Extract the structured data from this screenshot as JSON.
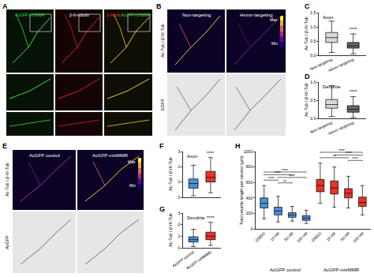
{
  "figure_panels": [
    {
      "label": "A",
      "columns": [
        [
          {
            "text": "AcGFP-mHMMR",
            "color": "#3cdc3c"
          }
        ],
        [
          {
            "text": "β-III-tubulin",
            "color": "#ffffff"
          }
        ],
        [
          {
            "text": "β-III-tub",
            "color": "#ff3030"
          },
          {
            "text": "AcGFP-mHMMR",
            "color": "#3cdc3c"
          }
        ]
      ]
    },
    {
      "label": "B",
      "columns": [
        "Non-targeting",
        "Hmmr-targeting"
      ],
      "rows": [
        "Ac-Tub / β-III-Tub",
        "EGFP"
      ],
      "colorbar": [
        "Max",
        "Min"
      ]
    },
    {
      "label": "E",
      "columns": [
        "AcGFP control",
        "AcGFP-mHMMR"
      ],
      "rows": [
        "Ac-Tub / β-III-Tub",
        "AcGFP"
      ],
      "colorbar": [
        "Max",
        "Min"
      ]
    }
  ],
  "chart_data": [
    {
      "label": "C",
      "type": "box",
      "title": "Axon",
      "y_label": "Ac-Tub / β-III-Tub",
      "categories": [
        "Non-targeting",
        "Hmmr-targeting"
      ],
      "colors": [
        "#d9d9d9",
        "#666666"
      ],
      "boxes": [
        {
          "min": 0.1,
          "q1": 0.45,
          "median": 0.62,
          "q3": 0.8,
          "max": 1.2
        },
        {
          "min": 0.05,
          "q1": 0.25,
          "median": 0.33,
          "q3": 0.45,
          "max": 0.75
        }
      ],
      "significance": "****",
      "ylim": [
        0,
        1.5
      ],
      "yticks": [
        {
          "value": 0,
          "label": "0.0"
        },
        {
          "value": 0.5,
          "label": "0.5"
        },
        {
          "value": 1,
          "label": "1.0"
        },
        {
          "value": 1.5,
          "label": "1.5"
        }
      ],
      "grid": false
    },
    {
      "label": "D",
      "type": "box",
      "title": "Dendrite",
      "y_label": "Ac-Tub / β-III-Tub",
      "categories": [
        "Non-targeting",
        "Hmmr-targeting"
      ],
      "colors": [
        "#d9d9d9",
        "#666666"
      ],
      "boxes": [
        {
          "min": 0.05,
          "q1": 0.28,
          "median": 0.38,
          "q3": 0.52,
          "max": 0.9
        },
        {
          "min": 0.02,
          "q1": 0.17,
          "median": 0.25,
          "q3": 0.35,
          "max": 0.6
        }
      ],
      "significance": "****",
      "ylim": [
        0,
        1
      ],
      "yticks": [
        {
          "value": 0,
          "label": "0.0"
        },
        {
          "value": 0.5,
          "label": "0.5"
        },
        {
          "value": 1,
          "label": "1.0"
        }
      ],
      "grid": false
    },
    {
      "label": "F",
      "type": "box",
      "title": "Axon",
      "y_label": "Ac-Tub / β-III-Tub",
      "categories": [
        "AcGFP control",
        "AcGFP-mHMMR"
      ],
      "colors": [
        "#4a90d9",
        "#e8332a"
      ],
      "boxes": [
        {
          "min": 0.1,
          "q1": 0.6,
          "median": 0.9,
          "q3": 1.2,
          "max": 2.1
        },
        {
          "min": 0.3,
          "q1": 1.0,
          "median": 1.3,
          "q3": 1.7,
          "max": 2.6
        }
      ],
      "significance": "****",
      "ylim": [
        0,
        3
      ],
      "yticks": [
        0,
        1,
        2,
        3
      ],
      "grid": false,
      "tick_labels": "y"
    },
    {
      "label": "G",
      "type": "box",
      "title": "Dendrite",
      "y_label": "Ac-Tub / β-III-Tub",
      "categories": [
        "AcGFP control",
        "AcGFP-mHMMR"
      ],
      "colors": [
        "#4a90d9",
        "#e8332a"
      ],
      "boxes": [
        {
          "min": 0.1,
          "q1": 0.5,
          "median": 0.7,
          "q3": 0.95,
          "max": 1.6
        },
        {
          "min": 0.2,
          "q1": 0.7,
          "median": 1.0,
          "q3": 1.35,
          "max": 2.2
        }
      ],
      "significance": "****",
      "ylim": [
        0,
        3
      ],
      "yticks": [
        0,
        1,
        2,
        3
      ],
      "grid": false
    },
    {
      "label": "H",
      "type": "box",
      "y_label": "Total neurite length per neuron (µm)",
      "categories": [
        "DMSO",
        "10 nM",
        "50 nM",
        "100 nM",
        "DMSO",
        "10 nM",
        "50 nM",
        "100 nM"
      ],
      "colors": [
        "#4a90d9",
        "#4a90d9",
        "#4a90d9",
        "#4a90d9",
        "#e8332a",
        "#e8332a",
        "#e8332a",
        "#e8332a"
      ],
      "groups": [
        {
          "label": "AcGFP control",
          "members": [
            0,
            1,
            2,
            3
          ]
        },
        {
          "label": "AcGFP-mHMMR",
          "members": [
            4,
            5,
            6,
            7
          ]
        }
      ],
      "boxes": [
        {
          "min": 130,
          "q1": 270,
          "median": 330,
          "q3": 400,
          "max": 560
        },
        {
          "min": 90,
          "q1": 180,
          "median": 230,
          "q3": 280,
          "max": 420
        },
        {
          "min": 100,
          "q1": 150,
          "median": 180,
          "q3": 210,
          "max": 290
        },
        {
          "min": 70,
          "q1": 110,
          "median": 140,
          "q3": 170,
          "max": 240
        },
        {
          "min": 330,
          "q1": 480,
          "median": 560,
          "q3": 640,
          "max": 850
        },
        {
          "min": 280,
          "q1": 450,
          "median": 530,
          "q3": 620,
          "max": 800
        },
        {
          "min": 270,
          "q1": 400,
          "median": 460,
          "q3": 520,
          "max": 680
        },
        {
          "min": 180,
          "q1": 290,
          "median": 340,
          "q3": 410,
          "max": 560
        }
      ],
      "comparisons": [
        {
          "pair": [
            1,
            2
          ],
          "label": "**"
        },
        {
          "pair": [
            0,
            1
          ],
          "label": "****"
        },
        {
          "pair": [
            1,
            3
          ],
          "label": "****"
        },
        {
          "pair": [
            0,
            2
          ],
          "label": "****"
        },
        {
          "pair": [
            0,
            3
          ],
          "label": "****"
        },
        {
          "pair": [
            6,
            7
          ],
          "label": "****"
        },
        {
          "pair": [
            4,
            6
          ],
          "label": "**"
        },
        {
          "pair": [
            5,
            7
          ],
          "label": "****"
        },
        {
          "pair": [
            4,
            7
          ],
          "label": "****"
        }
      ],
      "ylim": [
        0,
        1000
      ],
      "yticks": [
        0,
        200,
        400,
        600,
        800,
        1000
      ],
      "grid": false
    }
  ]
}
